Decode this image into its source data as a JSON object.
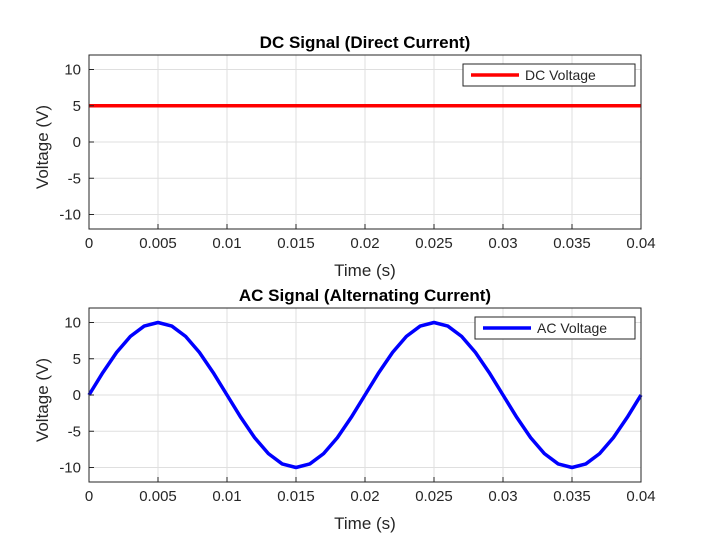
{
  "chart_data": [
    {
      "type": "line",
      "title": "DC Signal (Direct Current)",
      "xlabel": "Time (s)",
      "ylabel": "Voltage (V)",
      "xlim": [
        0,
        0.04
      ],
      "ylim": [
        -12,
        12
      ],
      "xticks": [
        0,
        0.005,
        0.01,
        0.015,
        0.02,
        0.025,
        0.03,
        0.035,
        0.04
      ],
      "xtick_labels": [
        "0",
        "0.005",
        "0.01",
        "0.015",
        "0.02",
        "0.025",
        "0.03",
        "0.035",
        "0.04"
      ],
      "yticks": [
        -10,
        -5,
        0,
        5,
        10
      ],
      "ytick_labels": [
        "-10",
        "-5",
        "0",
        "5",
        "10"
      ],
      "grid": true,
      "legend_position": "top-right",
      "series": [
        {
          "name": "DC Voltage",
          "color": "#ff0000",
          "x": [
            0,
            0.005,
            0.01,
            0.015,
            0.02,
            0.025,
            0.03,
            0.035,
            0.04
          ],
          "y": [
            5,
            5,
            5,
            5,
            5,
            5,
            5,
            5,
            5
          ]
        }
      ]
    },
    {
      "type": "line",
      "title": "AC Signal (Alternating Current)",
      "xlabel": "Time (s)",
      "ylabel": "Voltage (V)",
      "xlim": [
        0,
        0.04
      ],
      "ylim": [
        -12,
        12
      ],
      "xticks": [
        0,
        0.005,
        0.01,
        0.015,
        0.02,
        0.025,
        0.03,
        0.035,
        0.04
      ],
      "xtick_labels": [
        "0",
        "0.005",
        "0.01",
        "0.015",
        "0.02",
        "0.025",
        "0.03",
        "0.035",
        "0.04"
      ],
      "yticks": [
        -10,
        -5,
        0,
        5,
        10
      ],
      "ytick_labels": [
        "-10",
        "-5",
        "0",
        "5",
        "10"
      ],
      "grid": true,
      "legend_position": "top-right",
      "series": [
        {
          "name": "AC Voltage",
          "color": "#0000ff",
          "x": [
            0,
            0.001,
            0.002,
            0.003,
            0.004,
            0.005,
            0.006,
            0.007,
            0.008,
            0.009,
            0.01,
            0.011,
            0.012,
            0.013,
            0.014,
            0.015,
            0.016,
            0.017,
            0.018,
            0.019,
            0.02,
            0.021,
            0.022,
            0.023,
            0.024,
            0.025,
            0.026,
            0.027,
            0.028,
            0.029,
            0.03,
            0.031,
            0.032,
            0.033,
            0.034,
            0.035,
            0.036,
            0.037,
            0.038,
            0.039,
            0.04
          ],
          "y": [
            0,
            3.09,
            5.88,
            8.09,
            9.51,
            10,
            9.51,
            8.09,
            5.88,
            3.09,
            0,
            -3.09,
            -5.88,
            -8.09,
            -9.51,
            -10,
            -9.51,
            -8.09,
            -5.88,
            -3.09,
            0,
            3.09,
            5.88,
            8.09,
            9.51,
            10,
            9.51,
            8.09,
            5.88,
            3.09,
            0,
            -3.09,
            -5.88,
            -8.09,
            -9.51,
            -10,
            -9.51,
            -8.09,
            -5.88,
            -3.09,
            0
          ]
        }
      ]
    }
  ]
}
